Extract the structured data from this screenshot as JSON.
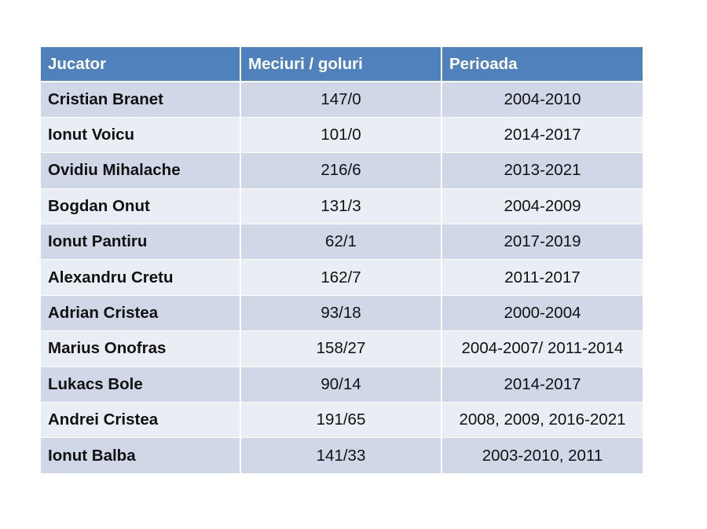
{
  "table": {
    "headers": [
      "Jucator",
      "Meciuri / goluri",
      "Perioada"
    ],
    "rows": [
      {
        "name": "Cristian Branet",
        "stats": "147/0",
        "period": "2004-2010"
      },
      {
        "name": "Ionut Voicu",
        "stats": "101/0",
        "period": "2014-2017"
      },
      {
        "name": "Ovidiu Mihalache",
        "stats": "216/6",
        "period": "2013-2021"
      },
      {
        "name": "Bogdan Onut",
        "stats": "131/3",
        "period": "2004-2009"
      },
      {
        "name": "Ionut Pantiru",
        "stats": "62/1",
        "period": "2017-2019"
      },
      {
        "name": "Alexandru Cretu",
        "stats": "162/7",
        "period": "2011-2017"
      },
      {
        "name": "Adrian Cristea",
        "stats": "93/18",
        "period": "2000-2004"
      },
      {
        "name": "Marius Onofras",
        "stats": "158/27",
        "period": "2004-2007/ 2011-2014"
      },
      {
        "name": "Lukacs Bole",
        "stats": "90/14",
        "period": "2014-2017"
      },
      {
        "name": "Andrei Cristea",
        "stats": "191/65",
        "period": "2008, 2009, 2016-2021"
      },
      {
        "name": "Ionut Balba",
        "stats": "141/33",
        "period": "2003-2010, 2011"
      }
    ]
  },
  "colors": {
    "header_bg": "#4f81bd",
    "row_dark": "#d0d8e8",
    "row_light": "#e9edf4"
  }
}
